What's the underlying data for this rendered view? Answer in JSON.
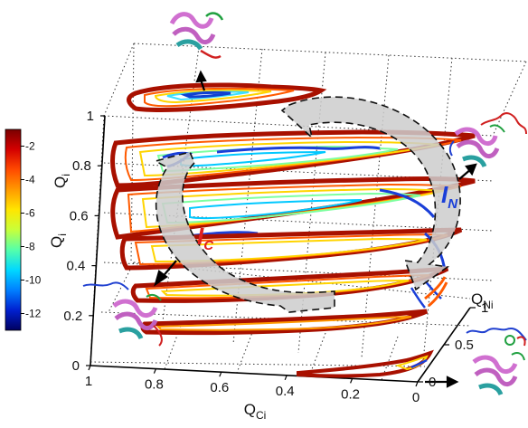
{
  "colorbar": {
    "label": "Q",
    "label_sub": "i",
    "ticks": [
      "-2",
      "-4",
      "-6",
      "-8",
      "-10",
      "-12"
    ],
    "min": -13,
    "max": -1,
    "gradient": [
      "#7a0000",
      "#d40000",
      "#ff4a00",
      "#ff9a00",
      "#ffe600",
      "#c8ff3a",
      "#55ffaa",
      "#00d8ff",
      "#0080ff",
      "#0020d0",
      "#000060"
    ]
  },
  "axes": {
    "y": {
      "label": "Q",
      "label_sub": "i",
      "ticks": [
        "1",
        "0.8",
        "0.6",
        "0.4",
        "0.2",
        "0"
      ]
    },
    "x": {
      "label": "Q",
      "label_sub": "Ci",
      "ticks": [
        "1",
        "0.8",
        "0.6",
        "0.4",
        "0.2",
        "0"
      ]
    },
    "z": {
      "label": "Q",
      "label_sub": "Ni",
      "ticks": [
        "1",
        "0.5",
        "0"
      ]
    }
  },
  "states": {
    "ic": {
      "letter": "I",
      "sub": "C",
      "color": "#e02020"
    },
    "in": {
      "letter": "I",
      "sub": "N",
      "color": "#1a3fd8"
    }
  },
  "protein_icons": [
    "protein-top",
    "protein-right",
    "protein-left",
    "protein-bottom-right"
  ]
}
